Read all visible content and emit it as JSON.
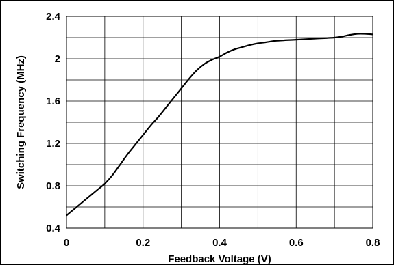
{
  "chart_data": {
    "type": "line",
    "title": "",
    "xlabel": "Feedback Voltage (V)",
    "ylabel": "Switching Frequency (MHz)",
    "xlim": [
      0,
      0.8
    ],
    "ylim": [
      0.4,
      2.4
    ],
    "x_ticks": [
      0,
      0.1,
      0.2,
      0.3,
      0.4,
      0.5,
      0.6,
      0.7,
      0.8
    ],
    "y_ticks": [
      0.4,
      0.6,
      0.8,
      1.0,
      1.2,
      1.4,
      1.6,
      1.8,
      2.0,
      2.2,
      2.4
    ],
    "x_tick_labels": [
      "0",
      "",
      "0.2",
      "",
      "0.4",
      "",
      "0.6",
      "",
      "0.8"
    ],
    "y_tick_labels": [
      "0.4",
      "",
      "0.8",
      "",
      "1.2",
      "",
      "1.6",
      "",
      "2",
      "",
      "2.4"
    ],
    "grid": true,
    "line_color": "#000000",
    "series": [
      {
        "x": [
          0,
          0.02,
          0.04,
          0.06,
          0.08,
          0.1,
          0.12,
          0.14,
          0.16,
          0.18,
          0.2,
          0.22,
          0.24,
          0.26,
          0.28,
          0.3,
          0.32,
          0.34,
          0.36,
          0.38,
          0.4,
          0.42,
          0.44,
          0.46,
          0.48,
          0.5,
          0.52,
          0.55,
          0.6,
          0.65,
          0.7,
          0.72,
          0.74,
          0.76,
          0.78,
          0.8
        ],
        "y": [
          0.52,
          0.58,
          0.64,
          0.7,
          0.76,
          0.82,
          0.9,
          1.0,
          1.1,
          1.19,
          1.28,
          1.37,
          1.45,
          1.54,
          1.63,
          1.72,
          1.81,
          1.89,
          1.95,
          1.99,
          2.02,
          2.06,
          2.09,
          2.11,
          2.13,
          2.145,
          2.155,
          2.17,
          2.18,
          2.19,
          2.2,
          2.21,
          2.225,
          2.235,
          2.235,
          2.23
        ]
      }
    ]
  }
}
